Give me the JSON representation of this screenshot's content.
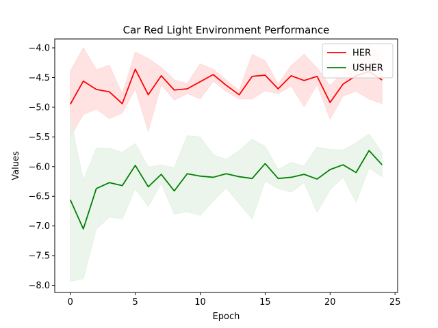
{
  "chart_data": {
    "type": "line",
    "title": "Car Red Light Environment Performance",
    "xlabel": "Epoch",
    "ylabel": "Values",
    "xlim": [
      -1.2,
      25.2
    ],
    "ylim": [
      -8.12,
      -3.85
    ],
    "xticks": [
      0,
      5,
      10,
      15,
      20,
      25
    ],
    "yticks": [
      -8.0,
      -7.5,
      -7.0,
      -6.5,
      -6.0,
      -5.5,
      -5.0,
      -4.5,
      -4.0
    ],
    "ytick_labels": [
      "−8.0",
      "−7.5",
      "−7.0",
      "−6.5",
      "−6.0",
      "−5.5",
      "−5.0",
      "−4.5",
      "−4.0"
    ],
    "legend_position": "upper right",
    "grid": false,
    "x": [
      0,
      1,
      2,
      3,
      4,
      5,
      6,
      7,
      8,
      9,
      10,
      11,
      12,
      13,
      14,
      15,
      16,
      17,
      18,
      19,
      20,
      21,
      22,
      23,
      24
    ],
    "series": [
      {
        "name": "HER",
        "color": "#ff0000",
        "fill_color": "#ffd9d9",
        "values": [
          -4.95,
          -4.56,
          -4.7,
          -4.74,
          -4.94,
          -4.36,
          -4.79,
          -4.47,
          -4.71,
          -4.69,
          -4.57,
          -4.45,
          -4.63,
          -4.79,
          -4.48,
          -4.46,
          -4.69,
          -4.47,
          -4.55,
          -4.48,
          -4.92,
          -4.61,
          -4.47,
          -4.4,
          -4.54
        ],
        "lower": [
          -5.5,
          -5.12,
          -5.03,
          -5.19,
          -5.1,
          -4.69,
          -5.4,
          -4.62,
          -4.88,
          -4.77,
          -4.86,
          -4.56,
          -4.73,
          -4.86,
          -4.86,
          -4.72,
          -4.77,
          -4.64,
          -4.99,
          -4.62,
          -5.2,
          -4.81,
          -4.73,
          -4.86,
          -4.94
        ],
        "upper": [
          -4.39,
          -4.0,
          -4.37,
          -4.29,
          -4.78,
          -4.07,
          -4.18,
          -4.33,
          -4.54,
          -4.6,
          -4.27,
          -4.36,
          -4.54,
          -4.72,
          -4.11,
          -4.22,
          -4.61,
          -4.3,
          -4.11,
          -4.34,
          -4.64,
          -4.41,
          -4.21,
          -3.95,
          -4.14
        ]
      },
      {
        "name": "USHER",
        "color": "#008000",
        "fill_color": "#e4f2e4",
        "values": [
          -6.56,
          -7.05,
          -6.37,
          -6.27,
          -6.32,
          -5.98,
          -6.34,
          -6.13,
          -6.41,
          -6.12,
          -6.16,
          -6.18,
          -6.12,
          -6.17,
          -6.2,
          -5.95,
          -6.2,
          -6.18,
          -6.13,
          -6.21,
          -6.05,
          -5.97,
          -6.1,
          -5.73,
          -5.97
        ],
        "lower": [
          -7.93,
          -7.89,
          -7.05,
          -6.85,
          -6.88,
          -6.37,
          -6.67,
          -6.28,
          -6.8,
          -6.76,
          -6.82,
          -6.58,
          -6.36,
          -6.62,
          -6.88,
          -6.24,
          -6.37,
          -6.43,
          -6.27,
          -6.77,
          -6.39,
          -6.18,
          -6.6,
          -6.02,
          -6.17
        ],
        "upper": [
          -5.18,
          -6.23,
          -5.69,
          -5.69,
          -5.76,
          -5.61,
          -6.01,
          -5.97,
          -6.02,
          -5.48,
          -5.5,
          -5.8,
          -5.88,
          -5.73,
          -5.54,
          -5.66,
          -6.05,
          -5.93,
          -5.99,
          -5.67,
          -5.71,
          -5.72,
          -5.6,
          -5.45,
          -5.77
        ]
      }
    ]
  }
}
